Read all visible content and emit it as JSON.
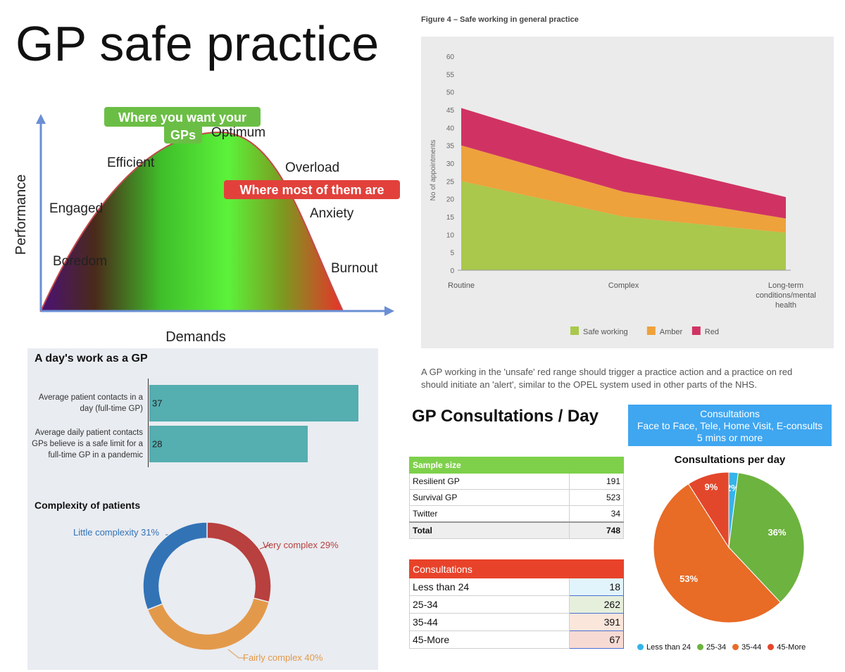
{
  "page": {
    "title": "GP safe practice"
  },
  "curve": {
    "ylabel": "Performance",
    "xlabel": "Demands",
    "labels": [
      "Boredom",
      "Engaged",
      "Efficient",
      "Optimum",
      "Overload",
      "Anxiety",
      "Burnout"
    ],
    "callout_want": [
      "Where you want your",
      "GPs"
    ],
    "callout_most": "Where most of them are",
    "colors": {
      "green": "#6bbe45",
      "red": "#e2413b"
    }
  },
  "chart_data": [
    {
      "type": "area",
      "title": "Figure 4 – Safe working in general practice",
      "ylabel": "No of appointments",
      "ylim": [
        0,
        60
      ],
      "yticks": [
        0,
        5,
        10,
        15,
        20,
        25,
        30,
        35,
        40,
        45,
        50,
        55,
        60
      ],
      "categories": [
        "Routine",
        "Complex",
        "Long-term conditions/mental health"
      ],
      "series": [
        {
          "name": "Safe working",
          "values": [
            25,
            15,
            10.5
          ],
          "color": "#a9c84c"
        },
        {
          "name": "Amber",
          "values": [
            10,
            7,
            4
          ],
          "color": "#eda23b"
        },
        {
          "name": "Red",
          "values": [
            10.5,
            9.5,
            6
          ],
          "color": "#d03363"
        }
      ],
      "legend": "bottom",
      "note": "A GP working in the 'unsafe' red range should trigger a practice action and a practice on red should initiate an 'alert', similar to the OPEL system used in other parts of the NHS."
    },
    {
      "type": "bar",
      "title": "A day's work as a GP",
      "categories": [
        "Average patient contacts in a day (full-time GP)",
        "Average daily patient contacts GPs believe is a safe limit for a full-time GP in a pandemic"
      ],
      "values": [
        37,
        28
      ],
      "color": "#55aeb0"
    },
    {
      "type": "pie",
      "title": "Complexity of patients",
      "donut": true,
      "slices": [
        {
          "label": "Very complex 29%",
          "value": 29,
          "color": "#b8403e"
        },
        {
          "label": "Fairly complex 40%",
          "value": 40,
          "color": "#e3994a"
        },
        {
          "label": "Little complexity 31%",
          "value": 31,
          "color": "#3273b6"
        }
      ]
    },
    {
      "type": "table",
      "title": "Sample size",
      "rows": [
        [
          "Resilient GP",
          "191"
        ],
        [
          "Survival GP",
          "523"
        ],
        [
          "Twitter",
          "34"
        ]
      ],
      "total": [
        "Total",
        "748"
      ]
    },
    {
      "type": "table",
      "title": "Consultations",
      "rows": [
        [
          "Less than 24",
          "18"
        ],
        [
          "25-34",
          "262"
        ],
        [
          "35-44",
          "391"
        ],
        [
          "45-More",
          "67"
        ]
      ]
    },
    {
      "type": "pie",
      "title": "Consultations per day",
      "slices": [
        {
          "label": "Less than 24",
          "value": 2,
          "text": "2%",
          "color": "#35b4ea"
        },
        {
          "label": "25-34",
          "value": 36,
          "text": "36%",
          "color": "#6db33f"
        },
        {
          "label": "35-44",
          "value": 53,
          "text": "53%",
          "color": "#e86b26"
        },
        {
          "label": "45-More",
          "value": 9,
          "text": "9%",
          "color": "#e3472b"
        }
      ],
      "legend": "bottom"
    }
  ],
  "consult": {
    "heading": "GP Consultations / Day",
    "box_lines": [
      "Consultations",
      "Face to Face, Tele, Home Visit, E-consults",
      "5 mins or more"
    ]
  }
}
